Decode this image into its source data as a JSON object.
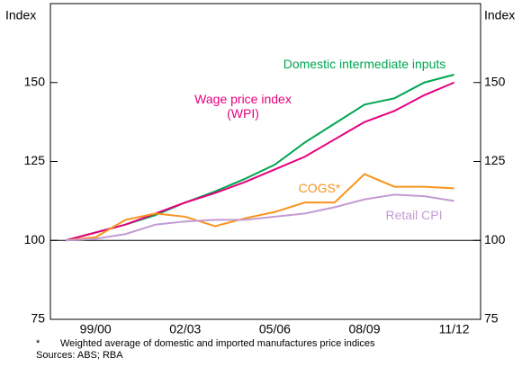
{
  "chart_data": {
    "type": "line",
    "y_label": "Index",
    "y2_label": "Index",
    "categories": [
      null,
      "99/00",
      null,
      null,
      "02/03",
      null,
      null,
      "05/06",
      null,
      null,
      "08/09",
      null,
      null,
      "11/12"
    ],
    "ylim": [
      75,
      175
    ],
    "yticks": [
      75,
      100,
      125,
      150
    ],
    "y2lim": [
      75,
      175
    ],
    "y2ticks": [
      75,
      100,
      125,
      150
    ],
    "reference_line": 100,
    "series": [
      {
        "name": "Domestic intermediate inputs",
        "color": "#00a651",
        "values": [
          100,
          102.5,
          105,
          108,
          112,
          115.5,
          119.5,
          124,
          131,
          137,
          143,
          145,
          150,
          152.5
        ]
      },
      {
        "name": "Wage price index (WPI)",
        "color": "#e6007e",
        "values": [
          100,
          102.5,
          105,
          108.5,
          112,
          115,
          118.5,
          122.5,
          126.5,
          132,
          137.5,
          141,
          146,
          150
        ]
      },
      {
        "name": "COGS*",
        "color": "#f7941d",
        "values": [
          100,
          101,
          106.5,
          108.5,
          107.5,
          104.5,
          107,
          109,
          112,
          112,
          121,
          117,
          117,
          116.5
        ]
      },
      {
        "name": "Retail CPI",
        "color": "#c39bd3",
        "values": [
          100,
          100.5,
          102,
          105,
          106,
          106.5,
          106.5,
          107.5,
          108.5,
          110.5,
          113,
          114.5,
          114,
          112.5
        ]
      }
    ],
    "footnote": {
      "marker": "*",
      "text": "Weighted average of domestic and imported manufactures price indices"
    },
    "sources": "Sources: ABS; RBA"
  }
}
